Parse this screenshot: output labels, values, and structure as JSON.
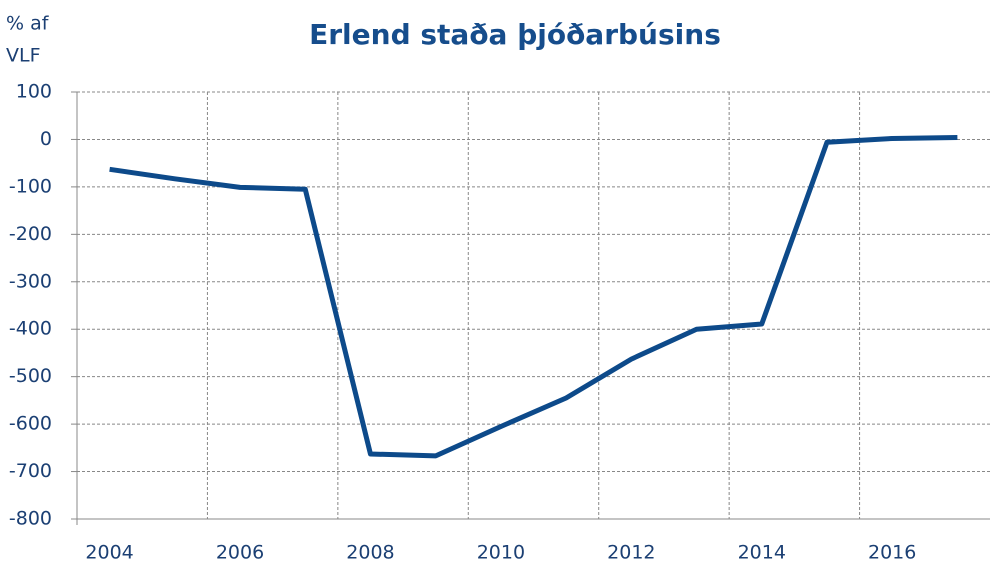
{
  "chart_data": {
    "type": "line",
    "title": "Erlend staða þjóðarbúsins",
    "y_label": [
      "% af",
      "VLF"
    ],
    "categories": [
      "2004",
      null,
      "2006",
      null,
      "2008",
      null,
      "2010",
      null,
      "2012",
      null,
      "2014",
      null,
      "2016",
      null
    ],
    "series": [
      {
        "name": "Erlend staða",
        "color": "#0d4a8a",
        "values": [
          -63,
          -83,
          -101,
          -105,
          -663,
          -667,
          -605,
          -545,
          -463,
          -400,
          -389,
          -6,
          2,
          4
        ]
      }
    ],
    "ylim": [
      -800,
      100
    ],
    "yticks": [
      -800,
      -700,
      -600,
      -500,
      -400,
      -300,
      -200,
      -100,
      0,
      100
    ],
    "grid": true
  }
}
